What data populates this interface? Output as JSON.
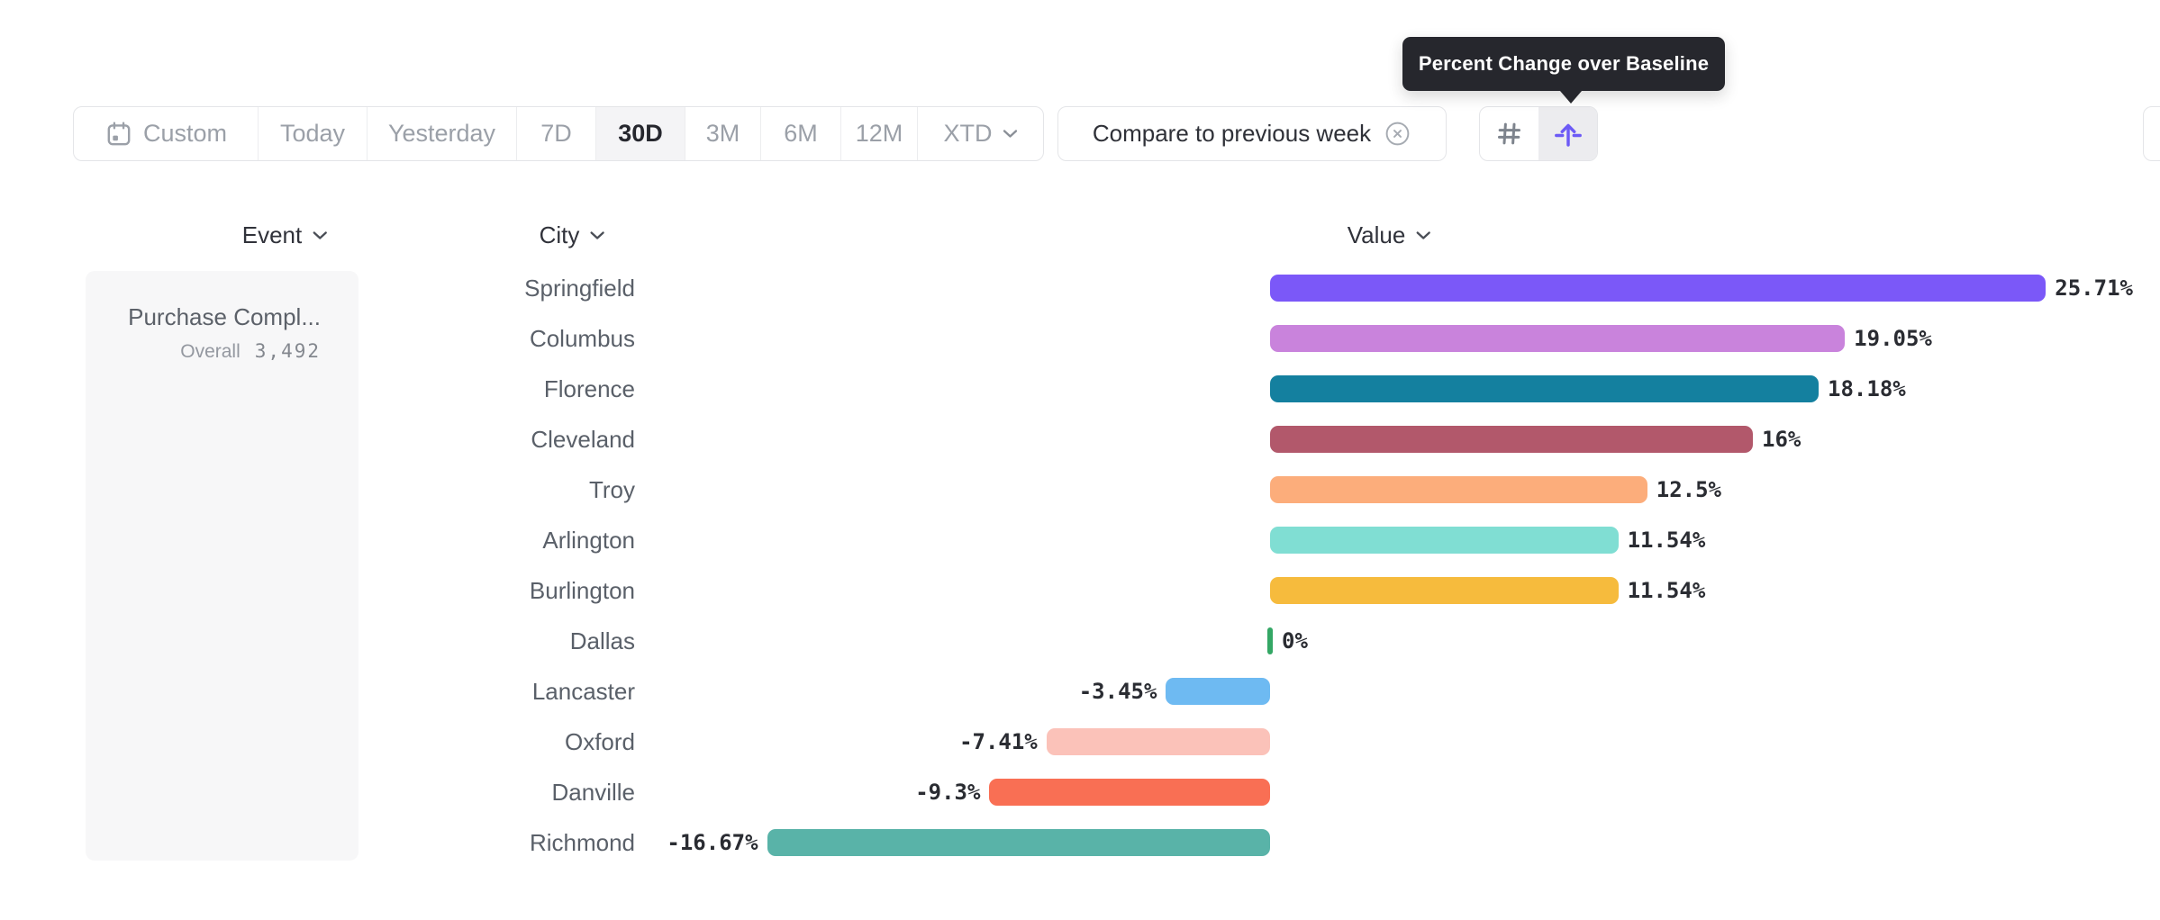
{
  "tooltip": {
    "text": "Percent Change over Baseline",
    "bg_color": "#26272D"
  },
  "toolbar": {
    "date_ranges": [
      {
        "label": "Custom",
        "icon": "calendar-icon"
      },
      {
        "label": "Today"
      },
      {
        "label": "Yesterday"
      },
      {
        "label": "7D"
      },
      {
        "label": "30D"
      },
      {
        "label": "3M"
      },
      {
        "label": "6M"
      },
      {
        "label": "12M"
      },
      {
        "label": "XTD",
        "icon": "chevron-down-icon"
      }
    ],
    "selected_range": "30D",
    "compare_chip": {
      "label": "Compare to previous week",
      "close_icon": "circle-x-icon"
    },
    "view_modes": [
      {
        "name": "numbers",
        "icon": "hash-icon",
        "selected": false
      },
      {
        "name": "percent-change-over-baseline",
        "icon": "arrow-up-baseline-icon",
        "selected": true
      }
    ],
    "accent_color": "#6C5AF6"
  },
  "columns": [
    {
      "label": "Event"
    },
    {
      "label": "City"
    },
    {
      "label": "Value"
    }
  ],
  "event_panel": {
    "event_name": "Purchase Compl...",
    "metric_label": "Overall",
    "metric_value": "3,492"
  },
  "chart_data": {
    "type": "bar",
    "orientation": "horizontal",
    "value_format": "percent change over baseline",
    "categories": [
      "Springfield",
      "Columbus",
      "Florence",
      "Cleveland",
      "Troy",
      "Arlington",
      "Burlington",
      "Dallas",
      "Lancaster",
      "Oxford",
      "Danville",
      "Richmond"
    ],
    "values": [
      25.71,
      19.05,
      18.18,
      16,
      12.5,
      11.54,
      11.54,
      0,
      -3.45,
      -7.41,
      -9.3,
      -16.67
    ],
    "value_labels": [
      "25.71%",
      "19.05%",
      "18.18%",
      "16%",
      "12.5%",
      "11.54%",
      "11.54%",
      "0%",
      "-3.45%",
      "-7.41%",
      "-9.3%",
      "-16.67%"
    ],
    "bar_colors": [
      "#7B58F8",
      "#C983DC",
      "#14809F",
      "#B2586B",
      "#FCAD7B",
      "#80DED3",
      "#F6BB3D",
      "#34A765",
      "#6EBAF2",
      "#FBC2B9",
      "#F96F54",
      "#59B3A8"
    ],
    "baseline": 0,
    "baseline_marker_color": "#34A765",
    "xlim": [
      -16.67,
      25.71
    ],
    "sort": "descending",
    "grid": false,
    "legend": false
  }
}
